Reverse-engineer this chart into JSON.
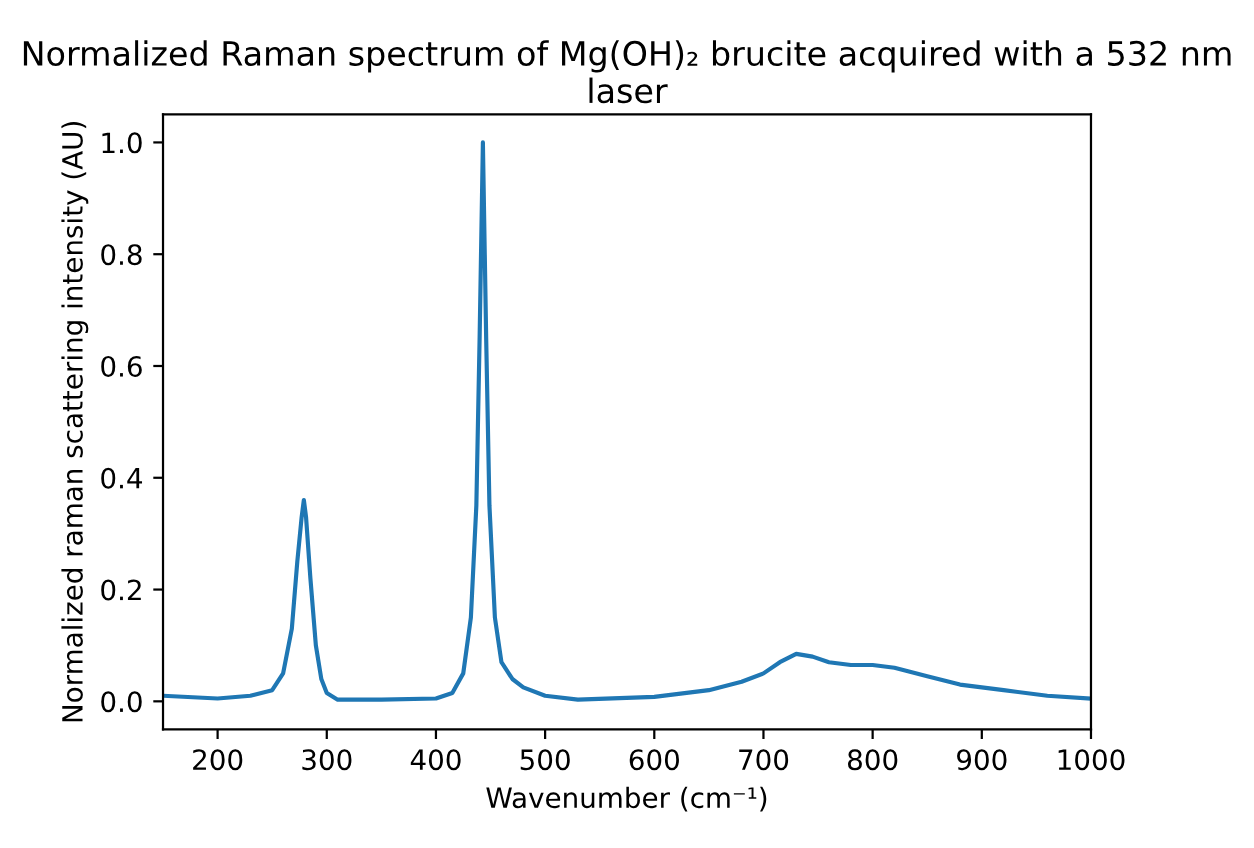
{
  "chart_data": {
    "type": "line",
    "title": "Normalized Raman spectrum of Mg(OH)₂ brucite acquired with a 532 nm laser",
    "xlabel": "Wavenumber (cm⁻¹)",
    "ylabel": "Normalized raman scattering intensity (AU)",
    "xlim": [
      150,
      1000
    ],
    "xticks": [
      200,
      300,
      400,
      500,
      600,
      700,
      800,
      900,
      1000
    ],
    "ylim": [
      -0.05,
      1.05
    ],
    "yticks": [
      {
        "value": 0,
        "label": "0.0"
      },
      0.2,
      0.4,
      0.6,
      0.8,
      {
        "value": 1,
        "label": "1.0"
      }
    ],
    "grid": false,
    "legend": false,
    "series": [
      {
        "color": "#1f77b4",
        "x": [
          150,
          200,
          230,
          250,
          260,
          268,
          273,
          277,
          279,
          281,
          285,
          290,
          295,
          300,
          310,
          350,
          400,
          415,
          425,
          432,
          437,
          440,
          443,
          446,
          449,
          454,
          460,
          470,
          480,
          500,
          530,
          600,
          650,
          680,
          700,
          715,
          730,
          745,
          760,
          780,
          800,
          820,
          850,
          880,
          920,
          960,
          1000
        ],
        "values": [
          0.01,
          0.005,
          0.01,
          0.02,
          0.05,
          0.13,
          0.25,
          0.33,
          0.36,
          0.33,
          0.22,
          0.1,
          0.04,
          0.015,
          0.003,
          0.003,
          0.005,
          0.015,
          0.05,
          0.15,
          0.35,
          0.65,
          1.0,
          0.65,
          0.35,
          0.15,
          0.07,
          0.04,
          0.025,
          0.01,
          0.003,
          0.008,
          0.02,
          0.035,
          0.05,
          0.07,
          0.085,
          0.08,
          0.07,
          0.065,
          0.065,
          0.06,
          0.045,
          0.03,
          0.02,
          0.01,
          0.005
        ]
      }
    ]
  }
}
